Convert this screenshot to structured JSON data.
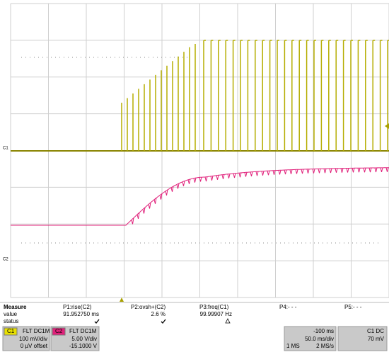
{
  "traces": [
    {
      "label": "C1"
    },
    {
      "label": "C2"
    }
  ],
  "measure": {
    "header": "Measure",
    "row_labels": [
      "value",
      "status"
    ],
    "params": [
      {
        "name": "P1:rise(C2)",
        "value": "91.952750 ms"
      },
      {
        "name": "P2:ovsh+(C2)",
        "value": "2.6 %"
      },
      {
        "name": "P3:freq(C1)",
        "value": "99.99907 Hz"
      },
      {
        "name": "P4:- - -"
      },
      {
        "name": "P5:- - -"
      }
    ]
  },
  "channel_panels": [
    {
      "badge": "C1",
      "coupling": "FLT DC1M",
      "scale": "100 mV/div",
      "offset": "0 µV offset"
    },
    {
      "badge": "C2",
      "coupling": "FLT DC1M",
      "scale": "5.00 V/div",
      "offset": "-15.1000 V"
    }
  ],
  "timebase": {
    "delay": "-100 ms",
    "scale": "50.0 ms/div",
    "memory": "1 MS",
    "rate": "2 MS/s"
  },
  "trigger": {
    "label": "C1 DC",
    "level": "70 mV"
  }
}
